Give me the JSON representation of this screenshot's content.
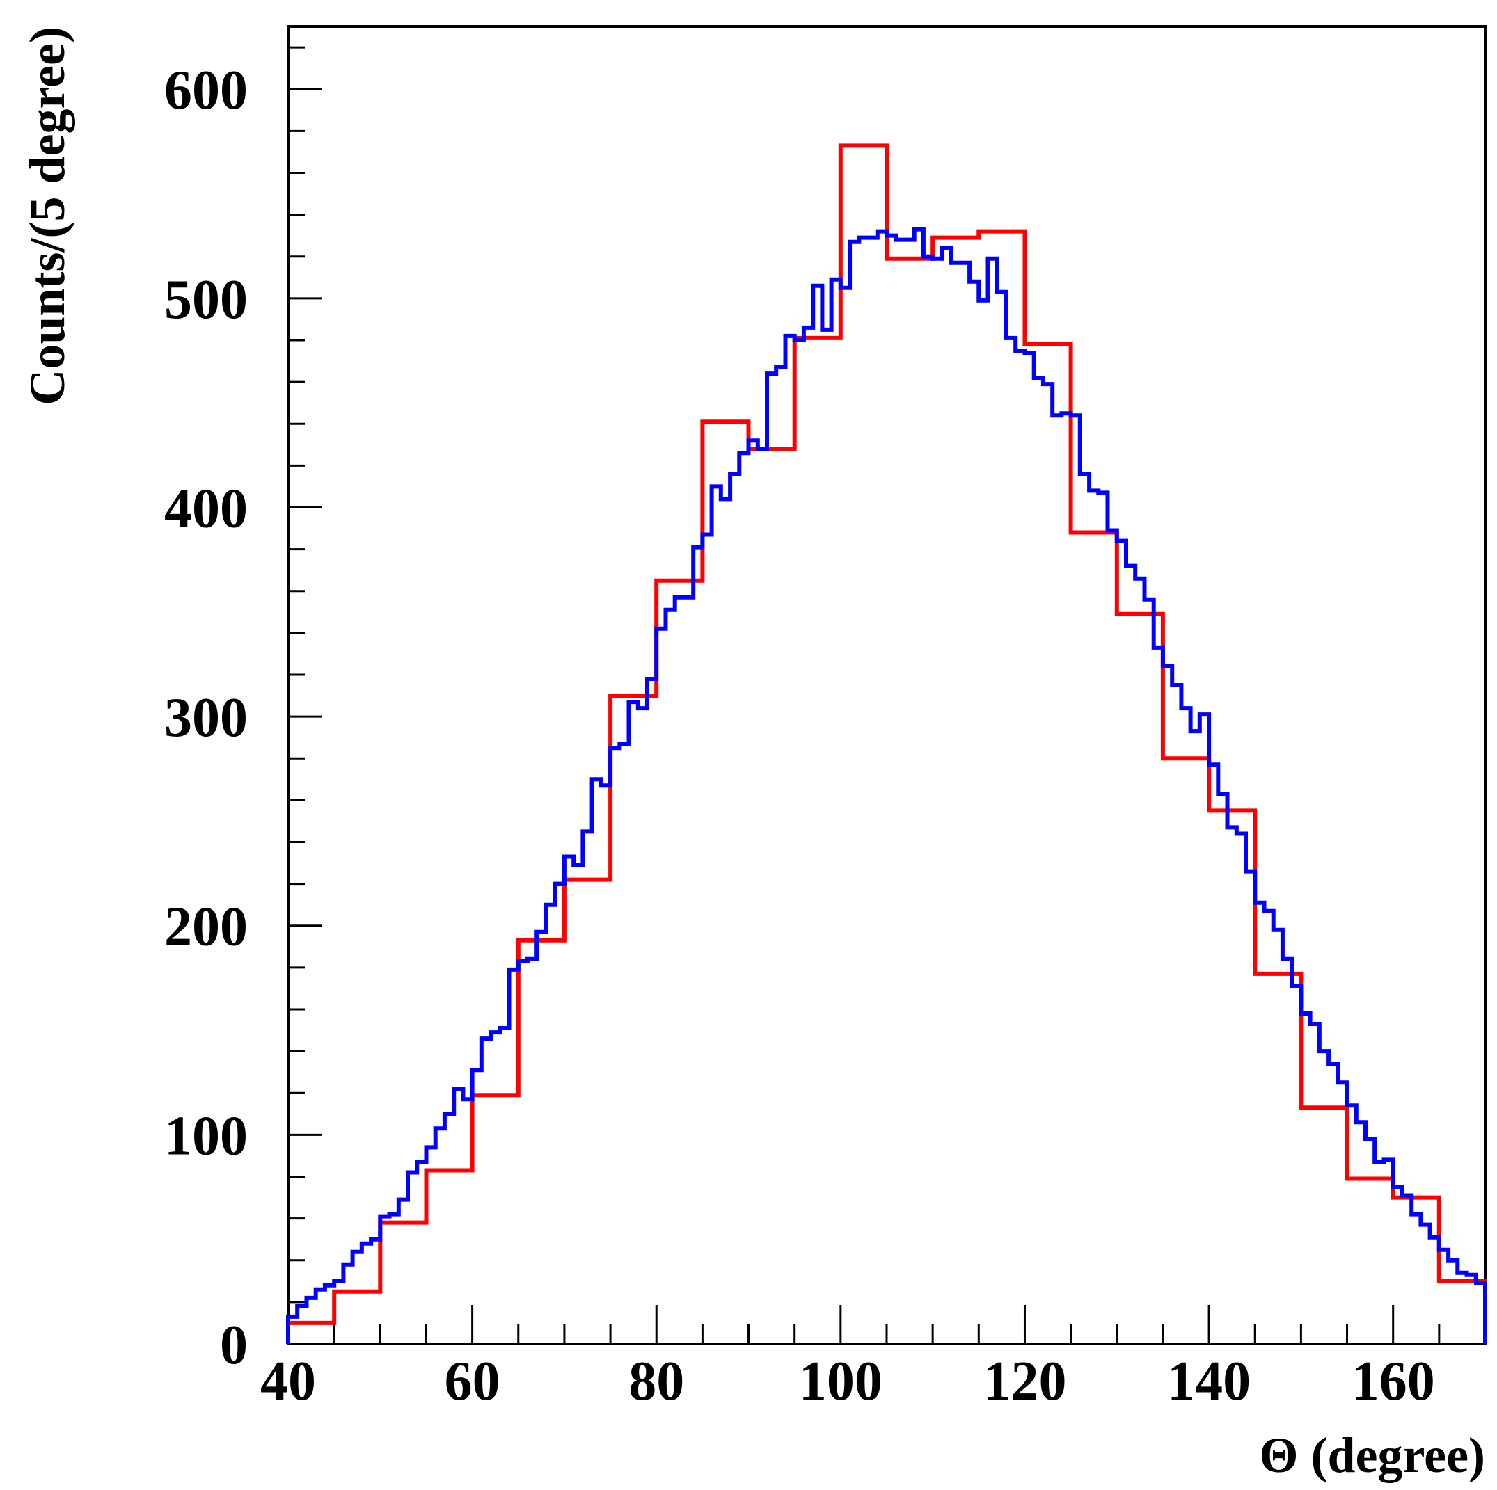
{
  "chart_data": {
    "type": "line",
    "title": "",
    "xlabel": "Θ (degree)",
    "ylabel": "Counts/(5 degree)",
    "xlim": [
      40,
      170
    ],
    "ylim": [
      0,
      630
    ],
    "x_ticks": [
      "40",
      "60",
      "80",
      "100",
      "120",
      "140",
      "160"
    ],
    "y_ticks": [
      "0",
      "100",
      "200",
      "300",
      "400",
      "500",
      "600"
    ],
    "grid": false,
    "legend": "none",
    "series": [
      {
        "color": "#ff0000",
        "bin_width": 5,
        "x_start": 40,
        "values": [
          10,
          25,
          58,
          83,
          119,
          193,
          222,
          310,
          365,
          441,
          428,
          481,
          573,
          519,
          529,
          532,
          478,
          388,
          349,
          280,
          255,
          177,
          113,
          79,
          70,
          30
        ]
      },
      {
        "color": "#0000ff",
        "bin_width": 1,
        "x_start": 40,
        "values": [
          13,
          18,
          22,
          26,
          28,
          30,
          38,
          44,
          48,
          50,
          61,
          62,
          69,
          82,
          87,
          94,
          103,
          110,
          122,
          117,
          131,
          146,
          149,
          151,
          179,
          183,
          184,
          197,
          210,
          220,
          233,
          229,
          245,
          270,
          267,
          285,
          287,
          307,
          304,
          318,
          342,
          351,
          357,
          357,
          381,
          387,
          410,
          404,
          416,
          426,
          432,
          428,
          464,
          467,
          482,
          480,
          486,
          506,
          485,
          509,
          505,
          527,
          529,
          529,
          532,
          530,
          528,
          528,
          533,
          520,
          519,
          524,
          517,
          517,
          508,
          499,
          519,
          503,
          481,
          475,
          474,
          462,
          459,
          444,
          445,
          444,
          416,
          408,
          407,
          389,
          384,
          372,
          366,
          356,
          333,
          324,
          315,
          304,
          293,
          301,
          277,
          263,
          247,
          244,
          226,
          211,
          207,
          198,
          184,
          171,
          158,
          153,
          140,
          134,
          125,
          114,
          106,
          98,
          87,
          88,
          75,
          71,
          62,
          57,
          51,
          45,
          40,
          34,
          33,
          29
        ]
      }
    ]
  }
}
